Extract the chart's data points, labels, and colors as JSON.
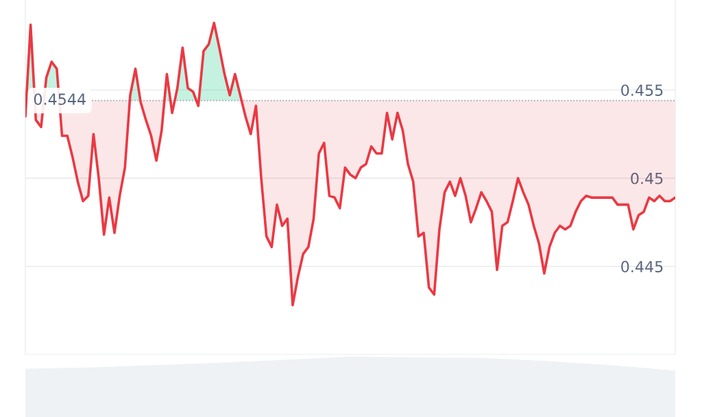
{
  "chart_data": {
    "type": "line",
    "categories": [
      null,
      null,
      null,
      null,
      null,
      null,
      null,
      null,
      null,
      null,
      null,
      null,
      null,
      null,
      null,
      null,
      null,
      null,
      null,
      null,
      null,
      null,
      null,
      null,
      null,
      null,
      null,
      null,
      null,
      null,
      null,
      null,
      null,
      null,
      null,
      null,
      null,
      null,
      null,
      null,
      null,
      null,
      null,
      null,
      null,
      null,
      null,
      null,
      null,
      null,
      null,
      null,
      null,
      null,
      null,
      null,
      null,
      null,
      null,
      null,
      null,
      null,
      null,
      null,
      null,
      null,
      null,
      null,
      null,
      null,
      null,
      null,
      null,
      null,
      null,
      null,
      null,
      null,
      null,
      null,
      null,
      null,
      null,
      null,
      null,
      null,
      null,
      null,
      null,
      null,
      null,
      null,
      null,
      null,
      null,
      null,
      null,
      null,
      null,
      null,
      null,
      null,
      null,
      null,
      null,
      null,
      null,
      null,
      null,
      null,
      null,
      null,
      null,
      null,
      null,
      null,
      null,
      null,
      null,
      null,
      null,
      null,
      null,
      null,
      null
    ],
    "series": [
      {
        "color": "#ea3943",
        "values": [
          0.4535,
          0.4587,
          0.4533,
          0.4529,
          0.4557,
          0.4566,
          0.4562,
          0.4524,
          0.4524,
          0.4512,
          0.4498,
          0.4487,
          0.449,
          0.4525,
          0.45,
          0.4468,
          0.4489,
          0.4469,
          0.449,
          0.4506,
          0.4547,
          0.4562,
          0.4543,
          0.4533,
          0.4524,
          0.451,
          0.4527,
          0.4559,
          0.4537,
          0.4551,
          0.4574,
          0.4551,
          0.4549,
          0.4541,
          0.4572,
          0.4576,
          0.4588,
          0.4574,
          0.4559,
          0.4547,
          0.4559,
          0.4547,
          0.4535,
          0.4525,
          0.4541,
          0.45,
          0.4467,
          0.4461,
          0.4485,
          0.4473,
          0.4477,
          0.4428,
          0.4444,
          0.4457,
          0.4461,
          0.4477,
          0.4514,
          0.452,
          0.449,
          0.4489,
          0.4483,
          0.4506,
          0.4502,
          0.45,
          0.4506,
          0.4508,
          0.4518,
          0.4514,
          0.4514,
          0.4537,
          0.4522,
          0.4537,
          0.4527,
          0.4508,
          0.4498,
          0.4467,
          0.4469,
          0.4438,
          0.4434,
          0.4471,
          0.4492,
          0.4498,
          0.449,
          0.45,
          0.449,
          0.4475,
          0.4483,
          0.4492,
          0.4487,
          0.4481,
          0.4448,
          0.4473,
          0.4475,
          0.4487,
          0.45,
          0.4492,
          0.4485,
          0.4473,
          0.4463,
          0.4446,
          0.4461,
          0.4469,
          0.4473,
          0.4471,
          0.4473,
          0.4481,
          0.4487,
          0.449,
          0.4489,
          0.4489,
          0.4489,
          0.4489,
          0.4489,
          0.4485,
          0.4485,
          0.4485,
          0.4471,
          0.4479,
          0.4481,
          0.4489,
          0.4487,
          0.449,
          0.4487,
          0.4487,
          0.4489
        ]
      }
    ],
    "ylim": [
      0.44,
      0.4601
    ],
    "yticks": [
      {
        "value": 0.44,
        "label": null
      },
      0.445,
      0.45,
      0.455
    ],
    "grid": "y",
    "tick_labels": "y",
    "ref_lines": [
      {
        "axis": "y",
        "value": 0.4544,
        "label": "0.4544",
        "color": "#9aa0ab",
        "line_style": "dotted"
      }
    ]
  }
}
